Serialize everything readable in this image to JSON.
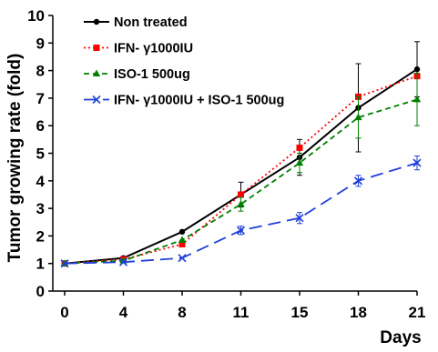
{
  "chart_data": {
    "type": "line",
    "title": "",
    "xlabel": "Days",
    "ylabel": "Tumor growing rate (fold)",
    "categories": [
      "0",
      "4",
      "8",
      "11",
      "15",
      "18",
      "21"
    ],
    "ylim": [
      0,
      10
    ],
    "yticks": [
      "0",
      "1",
      "2",
      "3",
      "4",
      "5",
      "6",
      "7",
      "8",
      "9",
      "10"
    ],
    "grid": false,
    "legend_position": "top-left",
    "series": [
      {
        "name": "Non treated",
        "color": "#000000",
        "line_style": "solid",
        "marker": "circle",
        "values": [
          1.0,
          1.2,
          2.15,
          3.5,
          4.85,
          6.65,
          8.05
        ],
        "error": [
          0,
          0,
          0,
          0.45,
          0.65,
          1.6,
          1.0
        ]
      },
      {
        "name": "IFN- γ1000IU",
        "color": "#ff0000",
        "line_style": "dotted",
        "marker": "square",
        "values": [
          1.0,
          1.15,
          1.7,
          3.5,
          5.2,
          7.05,
          7.8
        ],
        "error": [
          0,
          0,
          0,
          0,
          0,
          0,
          0
        ]
      },
      {
        "name": "ISO-1 500ug",
        "color": "#008000",
        "line_style": "dashed",
        "marker": "triangle",
        "values": [
          1.0,
          1.1,
          1.85,
          3.15,
          4.65,
          6.3,
          6.95
        ],
        "error": [
          0,
          0,
          0,
          0.25,
          0.35,
          0.75,
          0.95
        ]
      },
      {
        "name": "IFN- γ1000IU + ISO-1 500ug",
        "color": "#1f3fd8",
        "line_style": "longdash",
        "marker": "x",
        "values": [
          1.0,
          1.05,
          1.2,
          2.2,
          2.65,
          4.0,
          4.65
        ],
        "error": [
          0,
          0,
          0,
          0.15,
          0.2,
          0.2,
          0.25
        ]
      }
    ]
  }
}
